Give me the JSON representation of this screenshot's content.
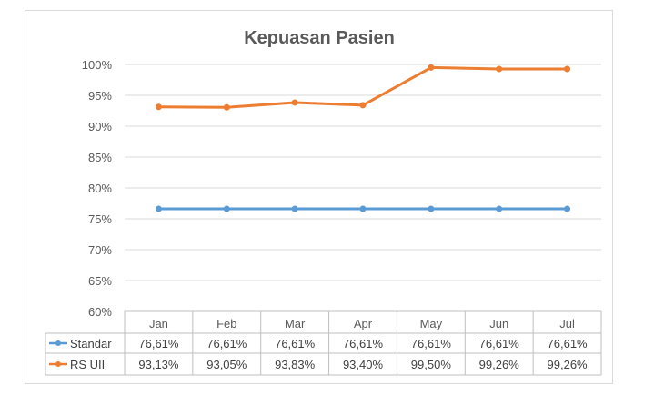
{
  "chart_data": {
    "type": "line",
    "title": "Kepuasan Pasien",
    "categories": [
      "Jan",
      "Feb",
      "Mar",
      "Apr",
      "May",
      "Jun",
      "Jul"
    ],
    "ylim": [
      60,
      100
    ],
    "yticks": [
      60,
      65,
      70,
      75,
      80,
      85,
      90,
      95,
      100
    ],
    "ytick_labels": [
      "60%",
      "65%",
      "70%",
      "75%",
      "80%",
      "85%",
      "90%",
      "95%",
      "100%"
    ],
    "grid": true,
    "legend": "data-table",
    "series": [
      {
        "name": "Standar",
        "color": "#5b9bd5",
        "values": [
          76.61,
          76.61,
          76.61,
          76.61,
          76.61,
          76.61,
          76.61
        ],
        "labels": [
          "76,61%",
          "76,61%",
          "76,61%",
          "76,61%",
          "76,61%",
          "76,61%",
          "76,61%"
        ]
      },
      {
        "name": "RS UII",
        "color": "#ed7d31",
        "values": [
          93.13,
          93.05,
          93.83,
          93.4,
          99.5,
          99.26,
          99.26
        ],
        "labels": [
          "93,13%",
          "93,05%",
          "93,83%",
          "93,40%",
          "99,50%",
          "99,26%",
          "99,26%"
        ]
      }
    ]
  }
}
